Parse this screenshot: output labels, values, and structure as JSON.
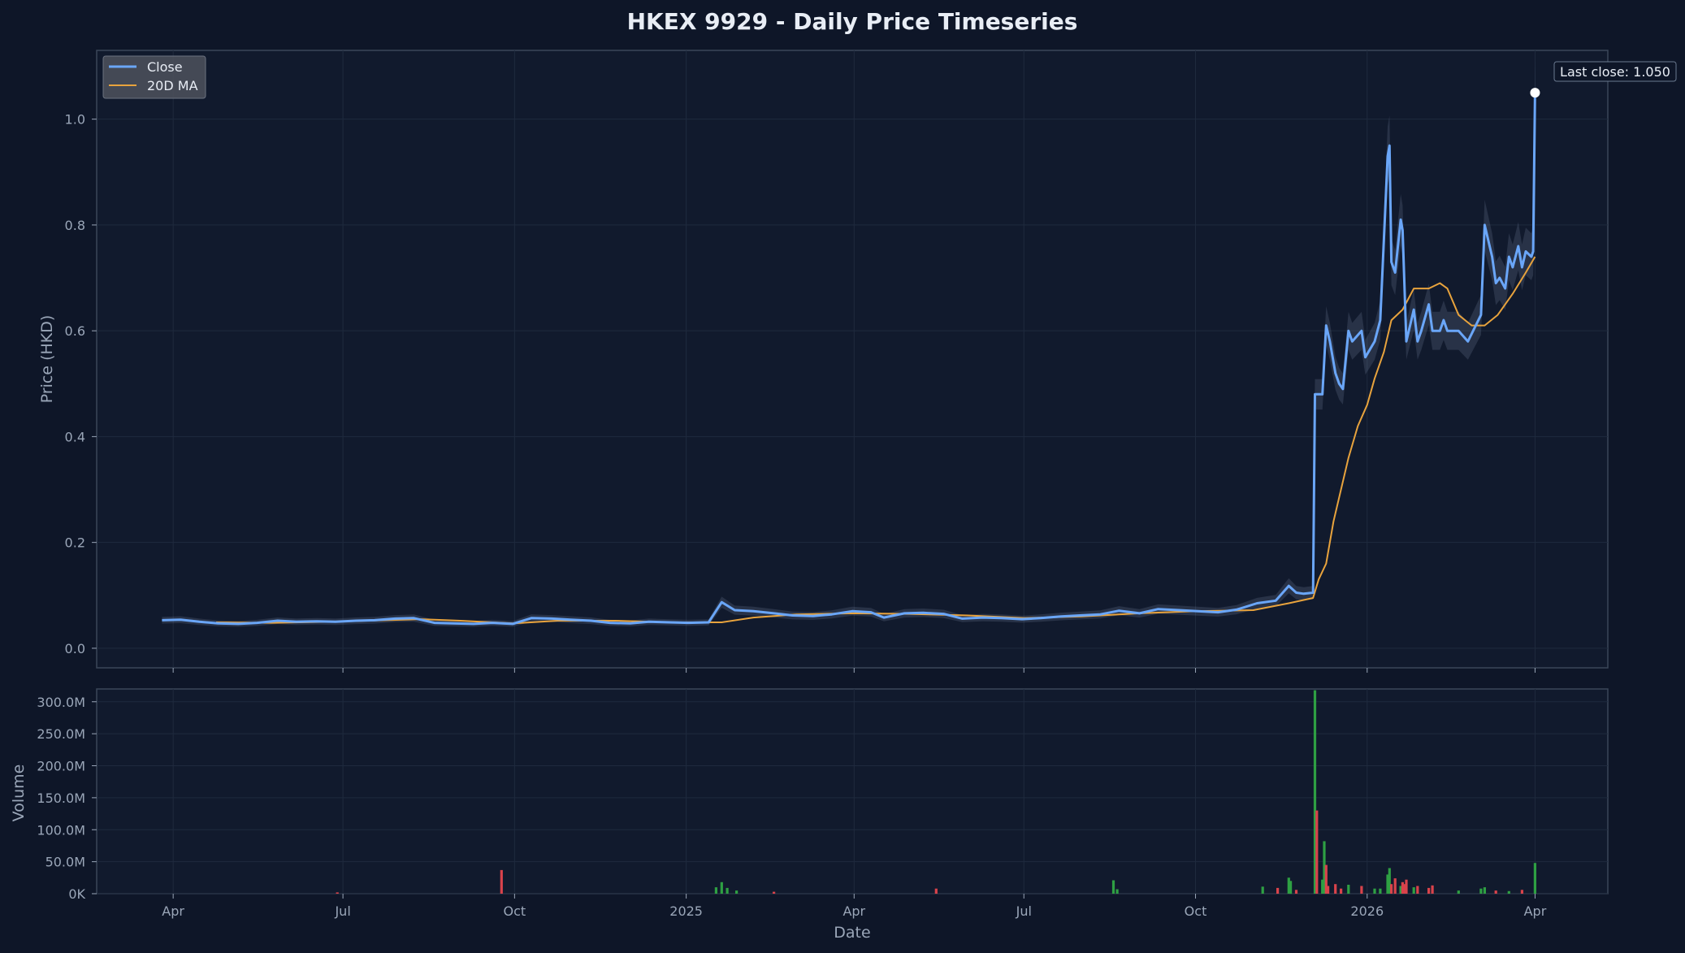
{
  "chart_data": {
    "type": "line",
    "title": "HKEX 9929 - Daily Price Timeseries",
    "ylabel": "Price (HKD)",
    "xlabel": "Date",
    "volume_ylabel": "Volume",
    "x_tick_labels": [
      "Apr",
      "Jul",
      "Oct",
      "2025",
      "Apr",
      "Jul",
      "Oct",
      "2026",
      "Apr"
    ],
    "x_tick_dates": [
      "2024-04-01",
      "2024-07-01",
      "2024-10-01",
      "2025-01-01",
      "2025-04-01",
      "2025-07-01",
      "2025-10-01",
      "2026-01-01",
      "2026-04-01"
    ],
    "xlim": [
      "2024-02-20",
      "2026-05-10"
    ],
    "ylim": [
      -0.037,
      1.13
    ],
    "price_ticks": [
      0.0,
      0.2,
      0.4,
      0.6,
      0.8,
      1.0
    ],
    "price_tick_labels": [
      "0.0",
      "0.2",
      "0.4",
      "0.6",
      "0.8",
      "1.0"
    ],
    "volume_ylim": [
      0,
      320000000
    ],
    "volume_ticks": [
      0,
      50000000,
      100000000,
      150000000,
      200000000,
      250000000,
      300000000
    ],
    "volume_tick_labels": [
      "0K",
      "50.0M",
      "100.0M",
      "150.0M",
      "200.0M",
      "250.0M",
      "300.0M"
    ],
    "grid": true,
    "legend_position": "top-left",
    "colors": {
      "close": "#6aa6f8",
      "ma": "#e8a33d",
      "up": "#2ea043",
      "down": "#d9434b",
      "band": "#9fb6d6",
      "marker": "#ffffff"
    },
    "series": [
      {
        "name": "Close",
        "points": [
          [
            "2024-03-26",
            0.053
          ],
          [
            "2024-04-05",
            0.054
          ],
          [
            "2024-04-15",
            0.05
          ],
          [
            "2024-04-25",
            0.047
          ],
          [
            "2024-05-06",
            0.046
          ],
          [
            "2024-05-16",
            0.048
          ],
          [
            "2024-05-27",
            0.052
          ],
          [
            "2024-06-06",
            0.05
          ],
          [
            "2024-06-17",
            0.051
          ],
          [
            "2024-06-27",
            0.05
          ],
          [
            "2024-07-08",
            0.052
          ],
          [
            "2024-07-18",
            0.053
          ],
          [
            "2024-07-29",
            0.056
          ],
          [
            "2024-08-08",
            0.057
          ],
          [
            "2024-08-19",
            0.048
          ],
          [
            "2024-08-29",
            0.047
          ],
          [
            "2024-09-09",
            0.046
          ],
          [
            "2024-09-19",
            0.048
          ],
          [
            "2024-09-30",
            0.046
          ],
          [
            "2024-10-10",
            0.057
          ],
          [
            "2024-10-21",
            0.056
          ],
          [
            "2024-10-31",
            0.054
          ],
          [
            "2024-11-11",
            0.052
          ],
          [
            "2024-11-21",
            0.048
          ],
          [
            "2024-12-02",
            0.047
          ],
          [
            "2024-12-12",
            0.05
          ],
          [
            "2024-12-23",
            0.049
          ],
          [
            "2025-01-02",
            0.048
          ],
          [
            "2025-01-13",
            0.049
          ],
          [
            "2025-01-20",
            0.087
          ],
          [
            "2025-01-27",
            0.072
          ],
          [
            "2025-02-06",
            0.07
          ],
          [
            "2025-02-17",
            0.066
          ],
          [
            "2025-02-27",
            0.062
          ],
          [
            "2025-03-10",
            0.061
          ],
          [
            "2025-03-20",
            0.064
          ],
          [
            "2025-03-31",
            0.07
          ],
          [
            "2025-04-10",
            0.068
          ],
          [
            "2025-04-17",
            0.058
          ],
          [
            "2025-04-28",
            0.066
          ],
          [
            "2025-05-08",
            0.067
          ],
          [
            "2025-05-19",
            0.065
          ],
          [
            "2025-05-29",
            0.056
          ],
          [
            "2025-06-09",
            0.058
          ],
          [
            "2025-06-19",
            0.057
          ],
          [
            "2025-06-30",
            0.055
          ],
          [
            "2025-07-10",
            0.057
          ],
          [
            "2025-07-21",
            0.06
          ],
          [
            "2025-07-31",
            0.062
          ],
          [
            "2025-08-11",
            0.064
          ],
          [
            "2025-08-21",
            0.071
          ],
          [
            "2025-09-01",
            0.066
          ],
          [
            "2025-09-11",
            0.074
          ],
          [
            "2025-09-22",
            0.072
          ],
          [
            "2025-10-02",
            0.07
          ],
          [
            "2025-10-13",
            0.068
          ],
          [
            "2025-10-23",
            0.073
          ],
          [
            "2025-11-03",
            0.085
          ],
          [
            "2025-11-13",
            0.09
          ],
          [
            "2025-11-20",
            0.118
          ],
          [
            "2025-11-24",
            0.105
          ],
          [
            "2025-11-28",
            0.103
          ],
          [
            "2025-12-03",
            0.105
          ],
          [
            "2025-12-04",
            0.48
          ],
          [
            "2025-12-08",
            0.48
          ],
          [
            "2025-12-10",
            0.61
          ],
          [
            "2025-12-12",
            0.58
          ],
          [
            "2025-12-15",
            0.52
          ],
          [
            "2025-12-17",
            0.5
          ],
          [
            "2025-12-19",
            0.49
          ],
          [
            "2025-12-22",
            0.6
          ],
          [
            "2025-12-24",
            0.58
          ],
          [
            "2025-12-29",
            0.6
          ],
          [
            "2025-12-31",
            0.55
          ],
          [
            "2026-01-05",
            0.58
          ],
          [
            "2026-01-08",
            0.62
          ],
          [
            "2026-01-12",
            0.93
          ],
          [
            "2026-01-13",
            0.95
          ],
          [
            "2026-01-14",
            0.73
          ],
          [
            "2026-01-16",
            0.71
          ],
          [
            "2026-01-19",
            0.81
          ],
          [
            "2026-01-20",
            0.79
          ],
          [
            "2026-01-22",
            0.58
          ],
          [
            "2026-01-26",
            0.64
          ],
          [
            "2026-01-28",
            0.58
          ],
          [
            "2026-01-30",
            0.6
          ],
          [
            "2026-02-03",
            0.65
          ],
          [
            "2026-02-05",
            0.6
          ],
          [
            "2026-02-09",
            0.6
          ],
          [
            "2026-02-11",
            0.62
          ],
          [
            "2026-02-13",
            0.6
          ],
          [
            "2026-02-19",
            0.6
          ],
          [
            "2026-02-24",
            0.58
          ],
          [
            "2026-03-03",
            0.63
          ],
          [
            "2026-03-05",
            0.8
          ],
          [
            "2026-03-09",
            0.74
          ],
          [
            "2026-03-11",
            0.69
          ],
          [
            "2026-03-13",
            0.7
          ],
          [
            "2026-03-16",
            0.68
          ],
          [
            "2026-03-18",
            0.74
          ],
          [
            "2026-03-20",
            0.72
          ],
          [
            "2026-03-23",
            0.76
          ],
          [
            "2026-03-25",
            0.72
          ],
          [
            "2026-03-27",
            0.75
          ],
          [
            "2026-03-30",
            0.74
          ],
          [
            "2026-03-31",
            0.75
          ],
          [
            "2026-04-01",
            1.05
          ]
        ]
      },
      {
        "name": "20D MA",
        "points": [
          [
            "2024-04-24",
            0.049
          ],
          [
            "2024-05-24",
            0.048
          ],
          [
            "2024-06-24",
            0.05
          ],
          [
            "2024-07-24",
            0.053
          ],
          [
            "2024-08-12",
            0.055
          ],
          [
            "2024-09-02",
            0.052
          ],
          [
            "2024-09-30",
            0.047
          ],
          [
            "2024-10-24",
            0.052
          ],
          [
            "2024-11-24",
            0.052
          ],
          [
            "2024-12-24",
            0.049
          ],
          [
            "2025-01-20",
            0.049
          ],
          [
            "2025-02-06",
            0.058
          ],
          [
            "2025-03-01",
            0.064
          ],
          [
            "2025-04-01",
            0.066
          ],
          [
            "2025-05-01",
            0.065
          ],
          [
            "2025-06-01",
            0.062
          ],
          [
            "2025-07-01",
            0.057
          ],
          [
            "2025-08-01",
            0.06
          ],
          [
            "2025-09-01",
            0.066
          ],
          [
            "2025-10-01",
            0.07
          ],
          [
            "2025-11-01",
            0.072
          ],
          [
            "2025-11-20",
            0.085
          ],
          [
            "2025-12-03",
            0.095
          ],
          [
            "2025-12-06",
            0.13
          ],
          [
            "2025-12-10",
            0.16
          ],
          [
            "2025-12-14",
            0.24
          ],
          [
            "2025-12-18",
            0.3
          ],
          [
            "2025-12-22",
            0.36
          ],
          [
            "2025-12-27",
            0.42
          ],
          [
            "2026-01-01",
            0.46
          ],
          [
            "2026-01-05",
            0.51
          ],
          [
            "2026-01-10",
            0.56
          ],
          [
            "2026-01-14",
            0.62
          ],
          [
            "2026-01-20",
            0.64
          ],
          [
            "2026-01-26",
            0.68
          ],
          [
            "2026-02-03",
            0.68
          ],
          [
            "2026-02-09",
            0.69
          ],
          [
            "2026-02-13",
            0.68
          ],
          [
            "2026-02-19",
            0.63
          ],
          [
            "2026-02-26",
            0.61
          ],
          [
            "2026-03-05",
            0.61
          ],
          [
            "2026-03-12",
            0.63
          ],
          [
            "2026-03-20",
            0.67
          ],
          [
            "2026-03-27",
            0.71
          ],
          [
            "2026-04-01",
            0.74
          ]
        ]
      }
    ],
    "volume": {
      "ylabel": "Volume",
      "bars": [
        [
          "2024-06-28",
          2000000,
          "down"
        ],
        [
          "2024-09-24",
          37000000,
          "down"
        ],
        [
          "2025-01-17",
          10000000,
          "up"
        ],
        [
          "2025-01-20",
          18000000,
          "up"
        ],
        [
          "2025-01-23",
          9000000,
          "up"
        ],
        [
          "2025-01-28",
          5000000,
          "up"
        ],
        [
          "2025-02-17",
          3000000,
          "down"
        ],
        [
          "2025-05-15",
          8000000,
          "down"
        ],
        [
          "2025-08-18",
          21000000,
          "up"
        ],
        [
          "2025-08-20",
          7000000,
          "up"
        ],
        [
          "2025-11-06",
          11000000,
          "up"
        ],
        [
          "2025-11-14",
          9000000,
          "down"
        ],
        [
          "2025-11-20",
          25000000,
          "up"
        ],
        [
          "2025-11-21",
          20000000,
          "up"
        ],
        [
          "2025-11-24",
          6000000,
          "down"
        ],
        [
          "2025-12-04",
          318000000,
          "up"
        ],
        [
          "2025-12-05",
          130000000,
          "down"
        ],
        [
          "2025-12-08",
          22000000,
          "up"
        ],
        [
          "2025-12-09",
          82000000,
          "up"
        ],
        [
          "2025-12-10",
          45000000,
          "down"
        ],
        [
          "2025-12-11",
          12000000,
          "down"
        ],
        [
          "2025-12-15",
          15000000,
          "down"
        ],
        [
          "2025-12-18",
          8000000,
          "down"
        ],
        [
          "2025-12-22",
          14000000,
          "up"
        ],
        [
          "2025-12-29",
          12000000,
          "down"
        ],
        [
          "2026-01-05",
          8000000,
          "up"
        ],
        [
          "2026-01-08",
          8000000,
          "up"
        ],
        [
          "2026-01-12",
          30000000,
          "up"
        ],
        [
          "2026-01-13",
          40000000,
          "up"
        ],
        [
          "2026-01-14",
          15000000,
          "down"
        ],
        [
          "2026-01-16",
          24000000,
          "down"
        ],
        [
          "2026-01-19",
          12000000,
          "up"
        ],
        [
          "2026-01-20",
          18000000,
          "down"
        ],
        [
          "2026-01-21",
          15000000,
          "down"
        ],
        [
          "2026-01-22",
          22000000,
          "down"
        ],
        [
          "2026-01-26",
          10000000,
          "up"
        ],
        [
          "2026-01-28",
          12000000,
          "down"
        ],
        [
          "2026-02-03",
          9000000,
          "down"
        ],
        [
          "2026-02-05",
          13000000,
          "down"
        ],
        [
          "2026-02-19",
          5000000,
          "up"
        ],
        [
          "2026-03-03",
          8000000,
          "up"
        ],
        [
          "2026-03-05",
          10000000,
          "up"
        ],
        [
          "2026-03-11",
          5000000,
          "down"
        ],
        [
          "2026-03-18",
          4000000,
          "up"
        ],
        [
          "2026-03-25",
          6000000,
          "down"
        ],
        [
          "2026-04-01",
          48000000,
          "up"
        ]
      ]
    },
    "annotations": [
      {
        "text": "Last close: 1.050",
        "date": "2026-04-01",
        "value": 1.05
      }
    ]
  }
}
